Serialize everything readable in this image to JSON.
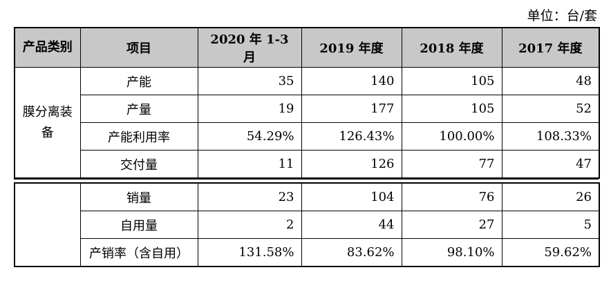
{
  "unit_label": "单位：台/套",
  "header": {
    "category": "产品类别",
    "item": "项目",
    "periods": [
      "2020 年 1-3 月",
      "2019 年度",
      "2018 年度",
      "2017 年度"
    ]
  },
  "section1": {
    "category": "膜分离装备",
    "rows": [
      {
        "item": "产能",
        "values": [
          "35",
          "140",
          "105",
          "48"
        ]
      },
      {
        "item": "产量",
        "values": [
          "19",
          "177",
          "105",
          "52"
        ]
      },
      {
        "item": "产能利用率",
        "values": [
          "54.29%",
          "126.43%",
          "100.00%",
          "108.33%"
        ]
      },
      {
        "item": "交付量",
        "values": [
          "11",
          "126",
          "77",
          "47"
        ]
      }
    ]
  },
  "section2": {
    "category": "",
    "rows": [
      {
        "item": "销量",
        "values": [
          "23",
          "104",
          "76",
          "26"
        ]
      },
      {
        "item": "自用量",
        "values": [
          "2",
          "44",
          "27",
          "5"
        ]
      },
      {
        "item": "产销率（含自用）",
        "values": [
          "131.58%",
          "83.62%",
          "98.10%",
          "59.62%"
        ]
      }
    ]
  }
}
